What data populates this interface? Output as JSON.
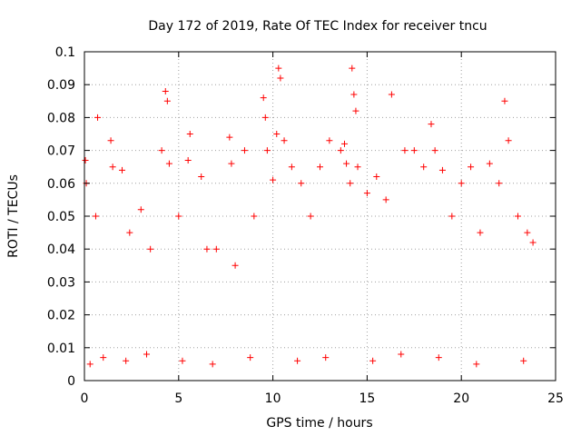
{
  "chart_data": {
    "type": "scatter",
    "title": "Day 172 of 2019, Rate Of TEC Index for receiver tncu",
    "xlabel": "GPS time / hours",
    "ylabel": "ROTI / TECUs",
    "xlim": [
      0,
      25
    ],
    "ylim": [
      0,
      0.1
    ],
    "x_ticks": [
      "0",
      "5",
      "10",
      "15",
      "20",
      "25"
    ],
    "y_ticks": [
      "0",
      "0.01",
      "0.02",
      "0.03",
      "0.04",
      "0.05",
      "0.06",
      "0.07",
      "0.08",
      "0.09",
      "0.1"
    ],
    "grid": true,
    "marker": "+",
    "color": "#ff0000",
    "series": [
      {
        "name": "ROTI",
        "x": [
          0.05,
          0.1,
          0.6,
          0.7,
          1.4,
          1.5,
          2.0,
          2.4,
          3.0,
          3.5,
          4.1,
          4.3,
          4.4,
          4.5,
          5.0,
          5.5,
          5.6,
          6.2,
          6.5,
          7.0,
          7.7,
          7.8,
          8.0,
          8.5,
          9.0,
          9.5,
          9.6,
          9.7,
          10.0,
          10.2,
          10.3,
          10.4,
          10.6,
          11.0,
          11.5,
          12.0,
          12.5,
          13.0,
          13.6,
          13.8,
          13.9,
          14.1,
          14.2,
          14.3,
          14.4,
          14.5,
          15.0,
          15.5,
          16.0,
          16.3,
          17.0,
          17.5,
          18.0,
          18.4,
          18.6,
          19.0,
          19.5,
          20.0,
          20.5,
          21.0,
          21.5,
          22.0,
          22.3,
          22.5,
          23.0,
          23.5,
          23.8,
          0.3,
          1.0,
          2.2,
          3.3,
          5.2,
          6.8,
          8.8,
          11.3,
          12.8,
          15.3,
          16.8,
          18.8,
          20.8,
          23.3
        ],
        "y": [
          0.067,
          0.06,
          0.05,
          0.08,
          0.073,
          0.065,
          0.064,
          0.045,
          0.052,
          0.04,
          0.07,
          0.088,
          0.085,
          0.066,
          0.05,
          0.067,
          0.075,
          0.062,
          0.04,
          0.04,
          0.074,
          0.066,
          0.035,
          0.07,
          0.05,
          0.086,
          0.08,
          0.07,
          0.061,
          0.075,
          0.095,
          0.092,
          0.073,
          0.065,
          0.06,
          0.05,
          0.065,
          0.073,
          0.07,
          0.072,
          0.066,
          0.06,
          0.095,
          0.087,
          0.082,
          0.065,
          0.057,
          0.062,
          0.055,
          0.087,
          0.07,
          0.07,
          0.065,
          0.078,
          0.07,
          0.064,
          0.05,
          0.06,
          0.065,
          0.045,
          0.066,
          0.06,
          0.085,
          0.073,
          0.05,
          0.045,
          0.042,
          0.005,
          0.007,
          0.006,
          0.008,
          0.006,
          0.005,
          0.007,
          0.006,
          0.007,
          0.006,
          0.008,
          0.007,
          0.005,
          0.006
        ]
      }
    ]
  }
}
